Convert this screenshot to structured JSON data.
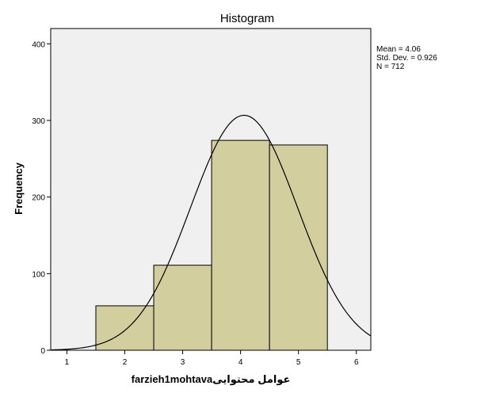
{
  "chart_data": {
    "type": "bar",
    "title": "Histogram",
    "xlabel": "farzieh1mohtavaعوامل محتوایی",
    "ylabel": "Frequency",
    "xlim": [
      0.72,
      6.25
    ],
    "ylim": [
      0,
      420
    ],
    "xticks": [
      "1",
      "2",
      "3",
      "4",
      "5",
      "6"
    ],
    "yticks": [
      "0",
      "100",
      "200",
      "300",
      "400"
    ],
    "bins": [
      {
        "from": 1.5,
        "to": 2.5,
        "value": 58
      },
      {
        "from": 2.5,
        "to": 3.5,
        "value": 111
      },
      {
        "from": 3.5,
        "to": 4.5,
        "value": 274
      },
      {
        "from": 4.5,
        "to": 5.5,
        "value": 268
      }
    ],
    "normal_curve": {
      "mean": 4.06,
      "sd": 0.926,
      "n": 712,
      "bin_width": 1
    },
    "stats": [
      "Mean = 4.06",
      "Std. Dev. = 0.926",
      "N = 712"
    ],
    "colors": {
      "bar_fill": "#d3ce9e",
      "plot_bg": "#f0f0f0",
      "stroke": "#000000"
    },
    "grid": false
  }
}
